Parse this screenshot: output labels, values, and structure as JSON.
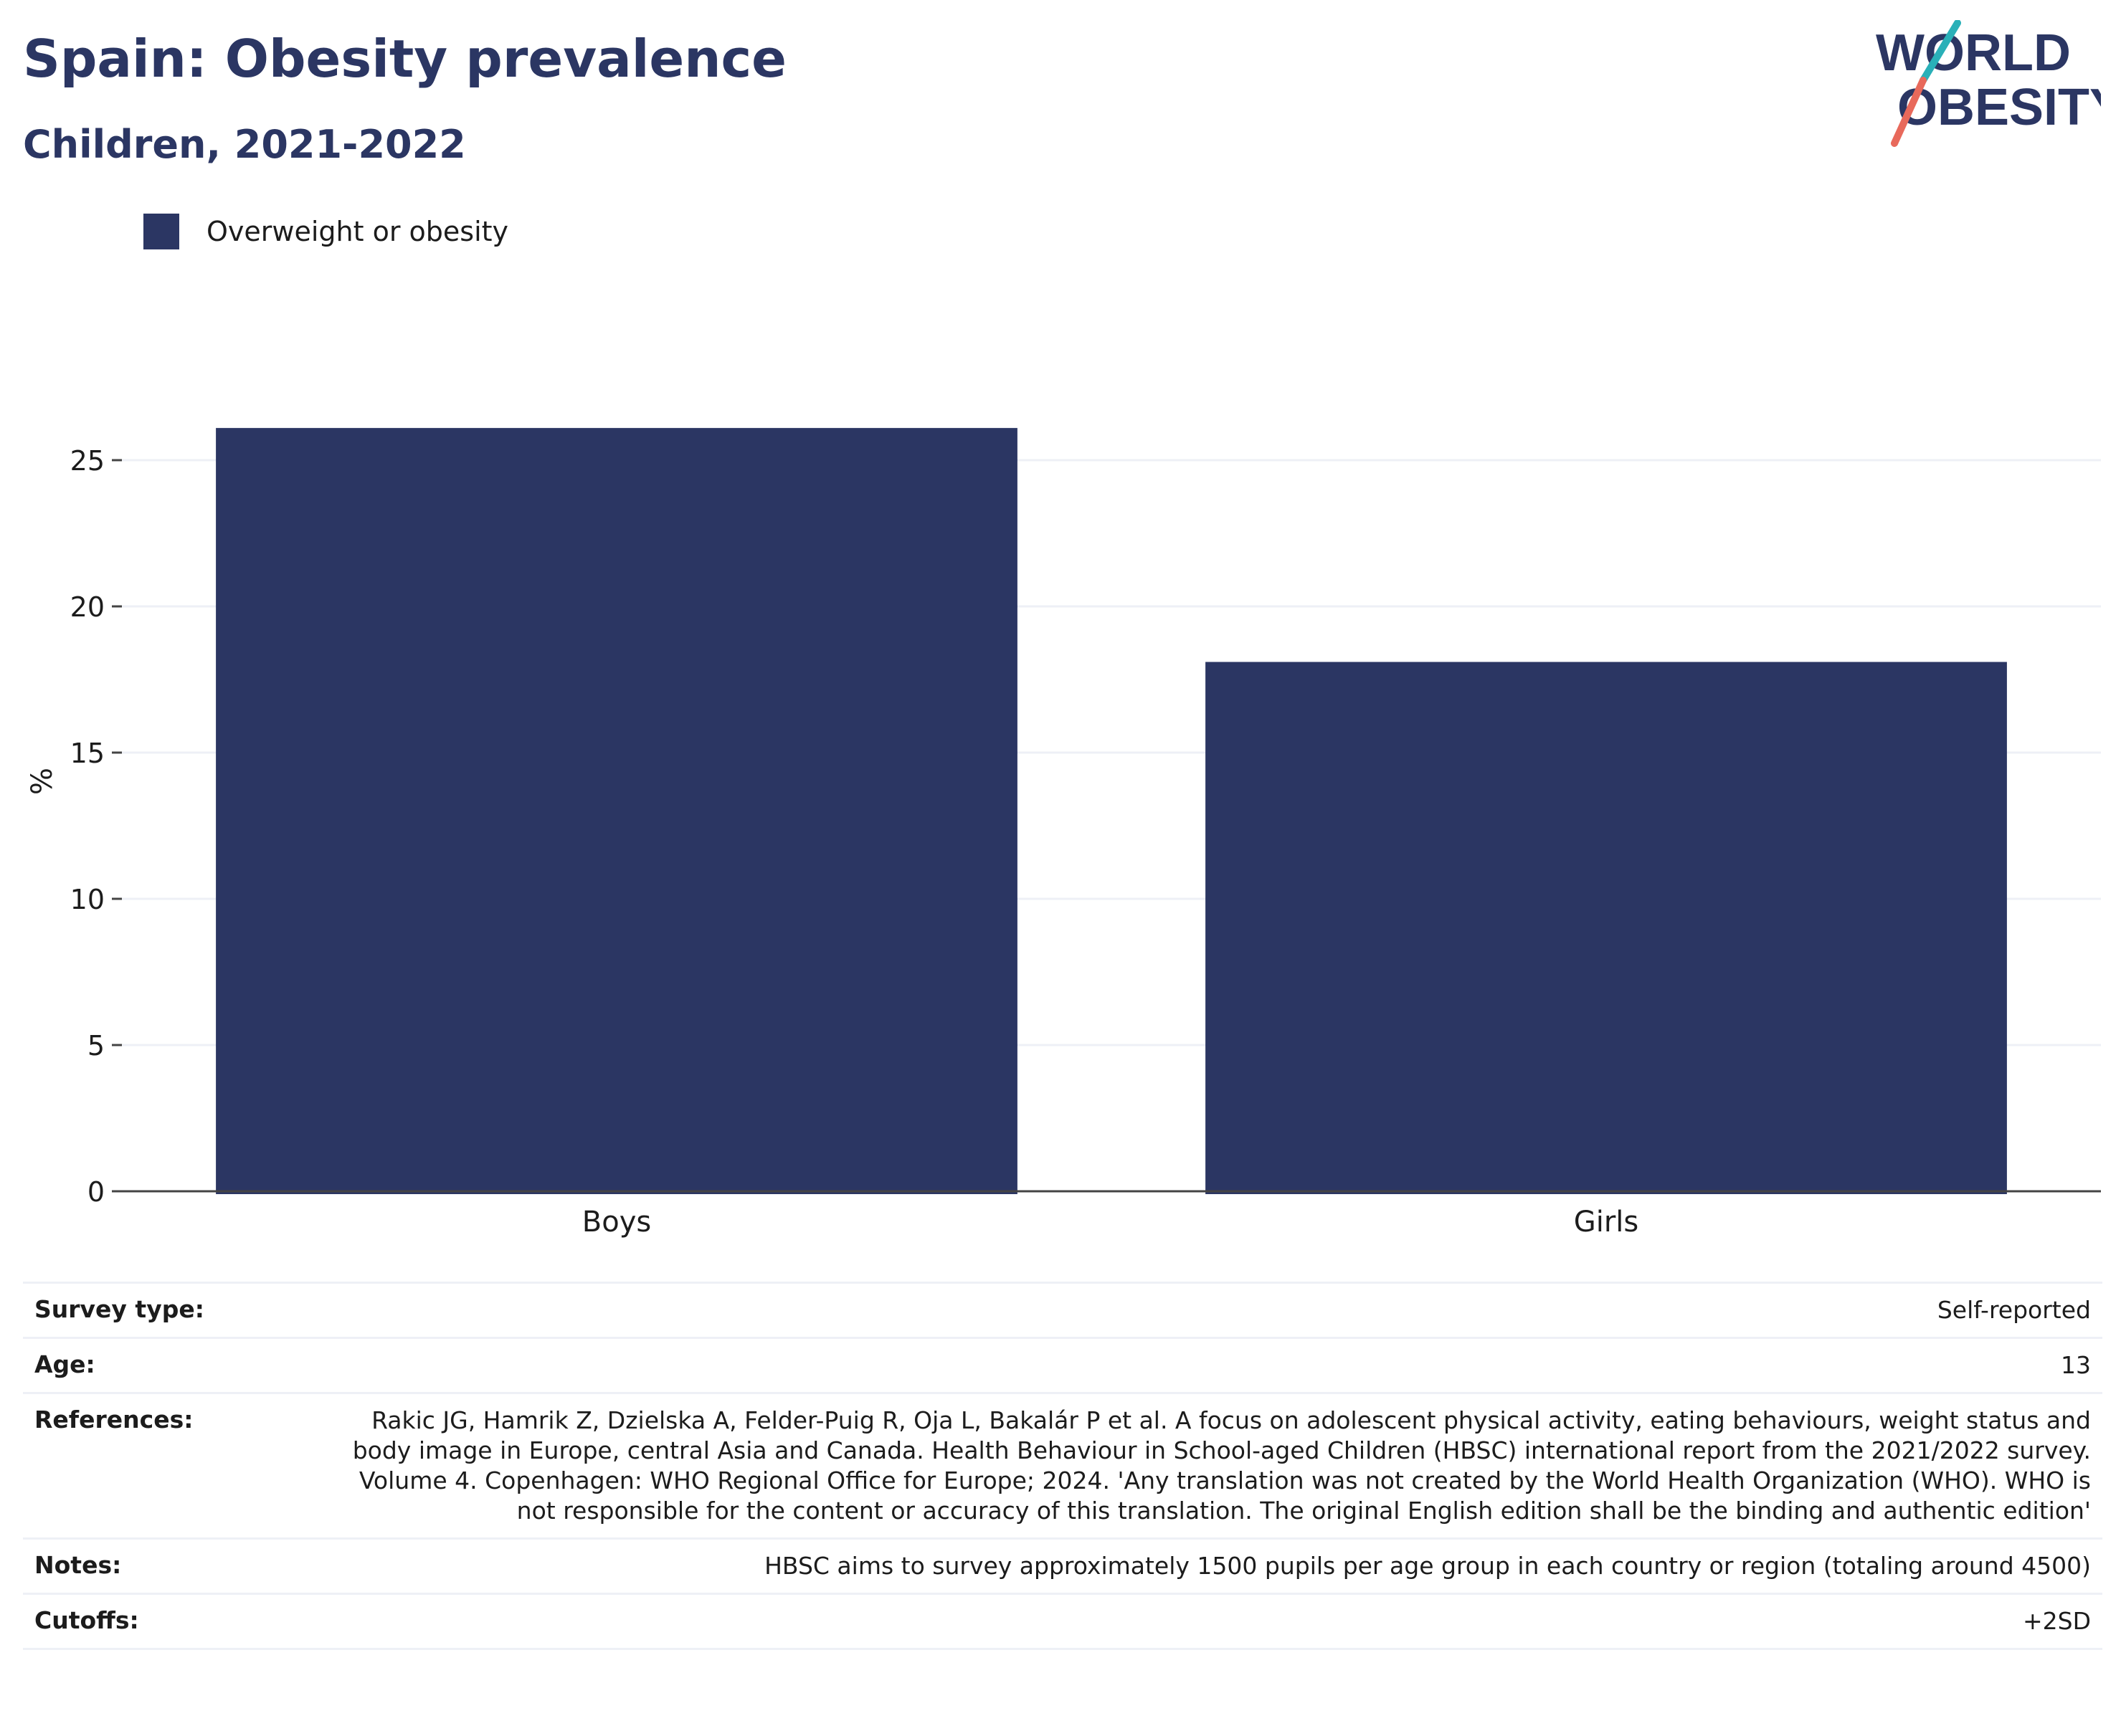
{
  "header": {
    "title": "Spain: Obesity prevalence",
    "subtitle": "Children, 2021-2022"
  },
  "logo": {
    "line1": "WORLD",
    "line2": "OBESITY",
    "colors": {
      "text": "#2b3663",
      "slash_top": "#2ab0b8",
      "slash_bottom": "#e8695b"
    }
  },
  "colors": {
    "bar": "#2b3663",
    "grid": "#eef0f6",
    "axis": "#444444"
  },
  "chart_data": {
    "type": "bar",
    "title": "",
    "xlabel": "",
    "ylabel": "%",
    "categories": [
      "Boys",
      "Girls"
    ],
    "series": [
      {
        "name": "Overweight or obesity",
        "values": [
          26.1,
          18.1
        ]
      }
    ],
    "ylim": [
      0,
      27.5
    ],
    "yticks": [
      0,
      5,
      10,
      15,
      20,
      25
    ],
    "grid": true,
    "legend_position": "top-left"
  },
  "info": [
    {
      "label": "Survey type:",
      "value": "Self-reported"
    },
    {
      "label": "Age:",
      "value": "13"
    },
    {
      "label": "References:",
      "value": "Rakic JG, Hamrik Z, Dzielska A, Felder-Puig R, Oja L, Bakalár P et al. A focus on adolescent physical activity, eating behaviours, weight status and body image in Europe, central Asia and Canada. Health Behaviour in School-aged Children (HBSC) international report from the 2021/2022 survey. Volume 4. Copenhagen: WHO Regional Office for Europe; 2024. 'Any translation was not created by the World Health Organization (WHO). WHO is not responsible for the content or accuracy of this translation. The original English edition shall be the binding and authentic edition'"
    },
    {
      "label": "Notes:",
      "value": "HBSC aims to survey approximately 1500 pupils per age group in each country or region (totaling around 4500)"
    },
    {
      "label": "Cutoffs:",
      "value": "+2SD"
    }
  ]
}
